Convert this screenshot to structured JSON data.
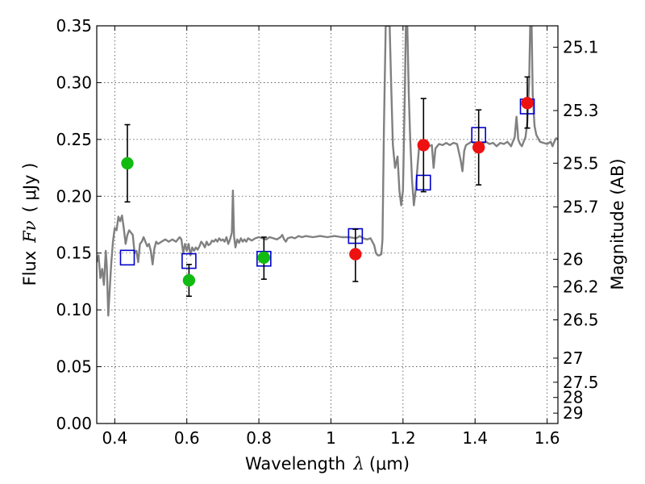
{
  "chart_data": {
    "type": "scatter",
    "xlabel": "Wavelength",
    "xlabel_symbol": "λ",
    "xlabel_unit": "(μm)",
    "ylabel": "Flux",
    "ylabel_symbol": "Fν",
    "ylabel_unit": "( μJy )",
    "y2label": "Magnitude (AB)",
    "xlim": [
      0.35,
      1.63
    ],
    "ylim": [
      0.0,
      0.35
    ],
    "grid": true,
    "x_ticks": [
      0.4,
      0.6,
      0.8,
      1.0,
      1.2,
      1.4,
      1.6
    ],
    "x_tick_labels": [
      "0.4",
      "0.6",
      "0.8",
      "1",
      "1.2",
      "1.4",
      "1.6"
    ],
    "y_ticks": [
      0.0,
      0.05,
      0.1,
      0.15,
      0.2,
      0.25,
      0.3,
      0.35
    ],
    "y_tick_labels": [
      "0.00",
      "0.05",
      "0.10",
      "0.15",
      "0.20",
      "0.25",
      "0.30",
      "0.35"
    ],
    "mag_ticks": [
      "25.1",
      "25.3",
      "25.5",
      "25.7",
      "26",
      "26.2",
      "26.5",
      "27",
      "27.5",
      "28",
      "29"
    ],
    "colors": {
      "spectrum": "#808080",
      "green_points": "#11bb11",
      "red_points": "#ee1111",
      "model_boxes": "#0000cc",
      "errorbars": "#000000"
    },
    "series": [
      {
        "kind": "line",
        "points": [
          [
            0.35,
            0.142
          ],
          [
            0.355,
            0.148
          ],
          [
            0.36,
            0.128
          ],
          [
            0.365,
            0.136
          ],
          [
            0.37,
            0.122
          ],
          [
            0.375,
            0.152
          ],
          [
            0.378,
            0.138
          ],
          [
            0.382,
            0.095
          ],
          [
            0.386,
            0.118
          ],
          [
            0.39,
            0.14
          ],
          [
            0.395,
            0.16
          ],
          [
            0.4,
            0.172
          ],
          [
            0.405,
            0.17
          ],
          [
            0.41,
            0.182
          ],
          [
            0.415,
            0.178
          ],
          [
            0.42,
            0.183
          ],
          [
            0.425,
            0.172
          ],
          [
            0.43,
            0.158
          ],
          [
            0.435,
            0.166
          ],
          [
            0.44,
            0.17
          ],
          [
            0.45,
            0.166
          ],
          [
            0.455,
            0.15
          ],
          [
            0.46,
            0.152
          ],
          [
            0.465,
            0.142
          ],
          [
            0.47,
            0.158
          ],
          [
            0.475,
            0.16
          ],
          [
            0.48,
            0.164
          ],
          [
            0.485,
            0.16
          ],
          [
            0.49,
            0.156
          ],
          [
            0.495,
            0.158
          ],
          [
            0.5,
            0.152
          ],
          [
            0.505,
            0.14
          ],
          [
            0.51,
            0.154
          ],
          [
            0.515,
            0.16
          ],
          [
            0.52,
            0.158
          ],
          [
            0.53,
            0.16
          ],
          [
            0.54,
            0.162
          ],
          [
            0.55,
            0.16
          ],
          [
            0.56,
            0.162
          ],
          [
            0.57,
            0.16
          ],
          [
            0.58,
            0.164
          ],
          [
            0.585,
            0.162
          ],
          [
            0.59,
            0.15
          ],
          [
            0.595,
            0.158
          ],
          [
            0.6,
            0.152
          ],
          [
            0.605,
            0.158
          ],
          [
            0.61,
            0.148
          ],
          [
            0.615,
            0.155
          ],
          [
            0.62,
            0.152
          ],
          [
            0.625,
            0.155
          ],
          [
            0.63,
            0.153
          ],
          [
            0.635,
            0.156
          ],
          [
            0.64,
            0.16
          ],
          [
            0.645,
            0.158
          ],
          [
            0.65,
            0.155
          ],
          [
            0.655,
            0.16
          ],
          [
            0.66,
            0.157
          ],
          [
            0.665,
            0.158
          ],
          [
            0.67,
            0.161
          ],
          [
            0.675,
            0.16
          ],
          [
            0.68,
            0.162
          ],
          [
            0.685,
            0.16
          ],
          [
            0.69,
            0.163
          ],
          [
            0.695,
            0.161
          ],
          [
            0.7,
            0.162
          ],
          [
            0.705,
            0.16
          ],
          [
            0.71,
            0.164
          ],
          [
            0.715,
            0.158
          ],
          [
            0.72,
            0.162
          ],
          [
            0.725,
            0.168
          ],
          [
            0.728,
            0.205
          ],
          [
            0.731,
            0.165
          ],
          [
            0.735,
            0.155
          ],
          [
            0.74,
            0.162
          ],
          [
            0.745,
            0.159
          ],
          [
            0.75,
            0.163
          ],
          [
            0.755,
            0.16
          ],
          [
            0.76,
            0.162
          ],
          [
            0.765,
            0.16
          ],
          [
            0.77,
            0.163
          ],
          [
            0.78,
            0.161
          ],
          [
            0.79,
            0.163
          ],
          [
            0.8,
            0.164
          ],
          [
            0.81,
            0.163
          ],
          [
            0.82,
            0.162
          ],
          [
            0.83,
            0.164
          ],
          [
            0.84,
            0.163
          ],
          [
            0.85,
            0.162
          ],
          [
            0.86,
            0.164
          ],
          [
            0.865,
            0.166
          ],
          [
            0.87,
            0.162
          ],
          [
            0.875,
            0.16
          ],
          [
            0.88,
            0.163
          ],
          [
            0.89,
            0.164
          ],
          [
            0.9,
            0.163
          ],
          [
            0.91,
            0.165
          ],
          [
            0.92,
            0.164
          ],
          [
            0.93,
            0.165
          ],
          [
            0.95,
            0.164
          ],
          [
            0.97,
            0.165
          ],
          [
            0.99,
            0.164
          ],
          [
            1.01,
            0.165
          ],
          [
            1.03,
            0.164
          ],
          [
            1.05,
            0.164
          ],
          [
            1.07,
            0.163
          ],
          [
            1.08,
            0.165
          ],
          [
            1.09,
            0.163
          ],
          [
            1.1,
            0.162
          ],
          [
            1.11,
            0.163
          ],
          [
            1.12,
            0.157
          ],
          [
            1.125,
            0.15
          ],
          [
            1.13,
            0.148
          ],
          [
            1.135,
            0.148
          ],
          [
            1.14,
            0.149
          ],
          [
            1.143,
            0.162
          ],
          [
            1.147,
            0.26
          ],
          [
            1.152,
            0.35
          ],
          [
            1.163,
            0.35
          ],
          [
            1.167,
            0.3
          ],
          [
            1.172,
            0.245
          ],
          [
            1.178,
            0.225
          ],
          [
            1.185,
            0.235
          ],
          [
            1.19,
            0.205
          ],
          [
            1.195,
            0.192
          ],
          [
            1.2,
            0.205
          ],
          [
            1.205,
            0.29
          ],
          [
            1.208,
            0.35
          ],
          [
            1.212,
            0.35
          ],
          [
            1.216,
            0.29
          ],
          [
            1.22,
            0.25
          ],
          [
            1.225,
            0.215
          ],
          [
            1.23,
            0.192
          ],
          [
            1.235,
            0.205
          ],
          [
            1.24,
            0.225
          ],
          [
            1.245,
            0.245
          ],
          [
            1.25,
            0.246
          ],
          [
            1.255,
            0.244
          ],
          [
            1.26,
            0.246
          ],
          [
            1.27,
            0.244
          ],
          [
            1.28,
            0.245
          ],
          [
            1.285,
            0.225
          ],
          [
            1.29,
            0.242
          ],
          [
            1.3,
            0.246
          ],
          [
            1.31,
            0.245
          ],
          [
            1.32,
            0.247
          ],
          [
            1.33,
            0.245
          ],
          [
            1.34,
            0.247
          ],
          [
            1.35,
            0.246
          ],
          [
            1.36,
            0.232
          ],
          [
            1.365,
            0.222
          ],
          [
            1.37,
            0.24
          ],
          [
            1.375,
            0.245
          ],
          [
            1.38,
            0.246
          ],
          [
            1.39,
            0.248
          ],
          [
            1.4,
            0.246
          ],
          [
            1.41,
            0.248
          ],
          [
            1.42,
            0.246
          ],
          [
            1.43,
            0.248
          ],
          [
            1.44,
            0.246
          ],
          [
            1.45,
            0.247
          ],
          [
            1.46,
            0.244
          ],
          [
            1.47,
            0.247
          ],
          [
            1.48,
            0.246
          ],
          [
            1.49,
            0.248
          ],
          [
            1.5,
            0.244
          ],
          [
            1.505,
            0.248
          ],
          [
            1.51,
            0.252
          ],
          [
            1.515,
            0.27
          ],
          [
            1.518,
            0.258
          ],
          [
            1.52,
            0.25
          ],
          [
            1.525,
            0.246
          ],
          [
            1.53,
            0.244
          ],
          [
            1.535,
            0.248
          ],
          [
            1.54,
            0.252
          ],
          [
            1.545,
            0.265
          ],
          [
            1.55,
            0.3
          ],
          [
            1.553,
            0.35
          ],
          [
            1.557,
            0.35
          ],
          [
            1.56,
            0.29
          ],
          [
            1.565,
            0.262
          ],
          [
            1.57,
            0.254
          ],
          [
            1.58,
            0.248
          ],
          [
            1.59,
            0.247
          ],
          [
            1.6,
            0.246
          ],
          [
            1.61,
            0.248
          ],
          [
            1.615,
            0.244
          ],
          [
            1.62,
            0.248
          ],
          [
            1.625,
            0.251
          ],
          [
            1.63,
            0.25
          ]
        ]
      },
      {
        "kind": "points-green",
        "points": [
          {
            "x": 0.435,
            "y": 0.229,
            "yerr": [
              0.195,
              0.263
            ]
          },
          {
            "x": 0.606,
            "y": 0.126,
            "yerr": [
              0.112,
              0.14
            ]
          },
          {
            "x": 0.814,
            "y": 0.146,
            "yerr": [
              0.127,
              0.164
            ]
          }
        ]
      },
      {
        "kind": "points-red",
        "points": [
          {
            "x": 1.068,
            "y": 0.149,
            "yerr": [
              0.125,
              0.171
            ]
          },
          {
            "x": 1.257,
            "y": 0.245,
            "yerr": [
              0.204,
              0.286
            ]
          },
          {
            "x": 1.41,
            "y": 0.243,
            "yerr": [
              0.21,
              0.276
            ]
          },
          {
            "x": 1.545,
            "y": 0.282,
            "yerr": [
              0.26,
              0.305
            ]
          }
        ]
      },
      {
        "kind": "boxes-blue",
        "points": [
          {
            "x": 0.435,
            "y": 0.146
          },
          {
            "x": 0.606,
            "y": 0.143
          },
          {
            "x": 0.814,
            "y": 0.145
          },
          {
            "x": 1.068,
            "y": 0.165
          },
          {
            "x": 1.257,
            "y": 0.212
          },
          {
            "x": 1.41,
            "y": 0.254
          },
          {
            "x": 1.545,
            "y": 0.279
          }
        ]
      }
    ]
  }
}
